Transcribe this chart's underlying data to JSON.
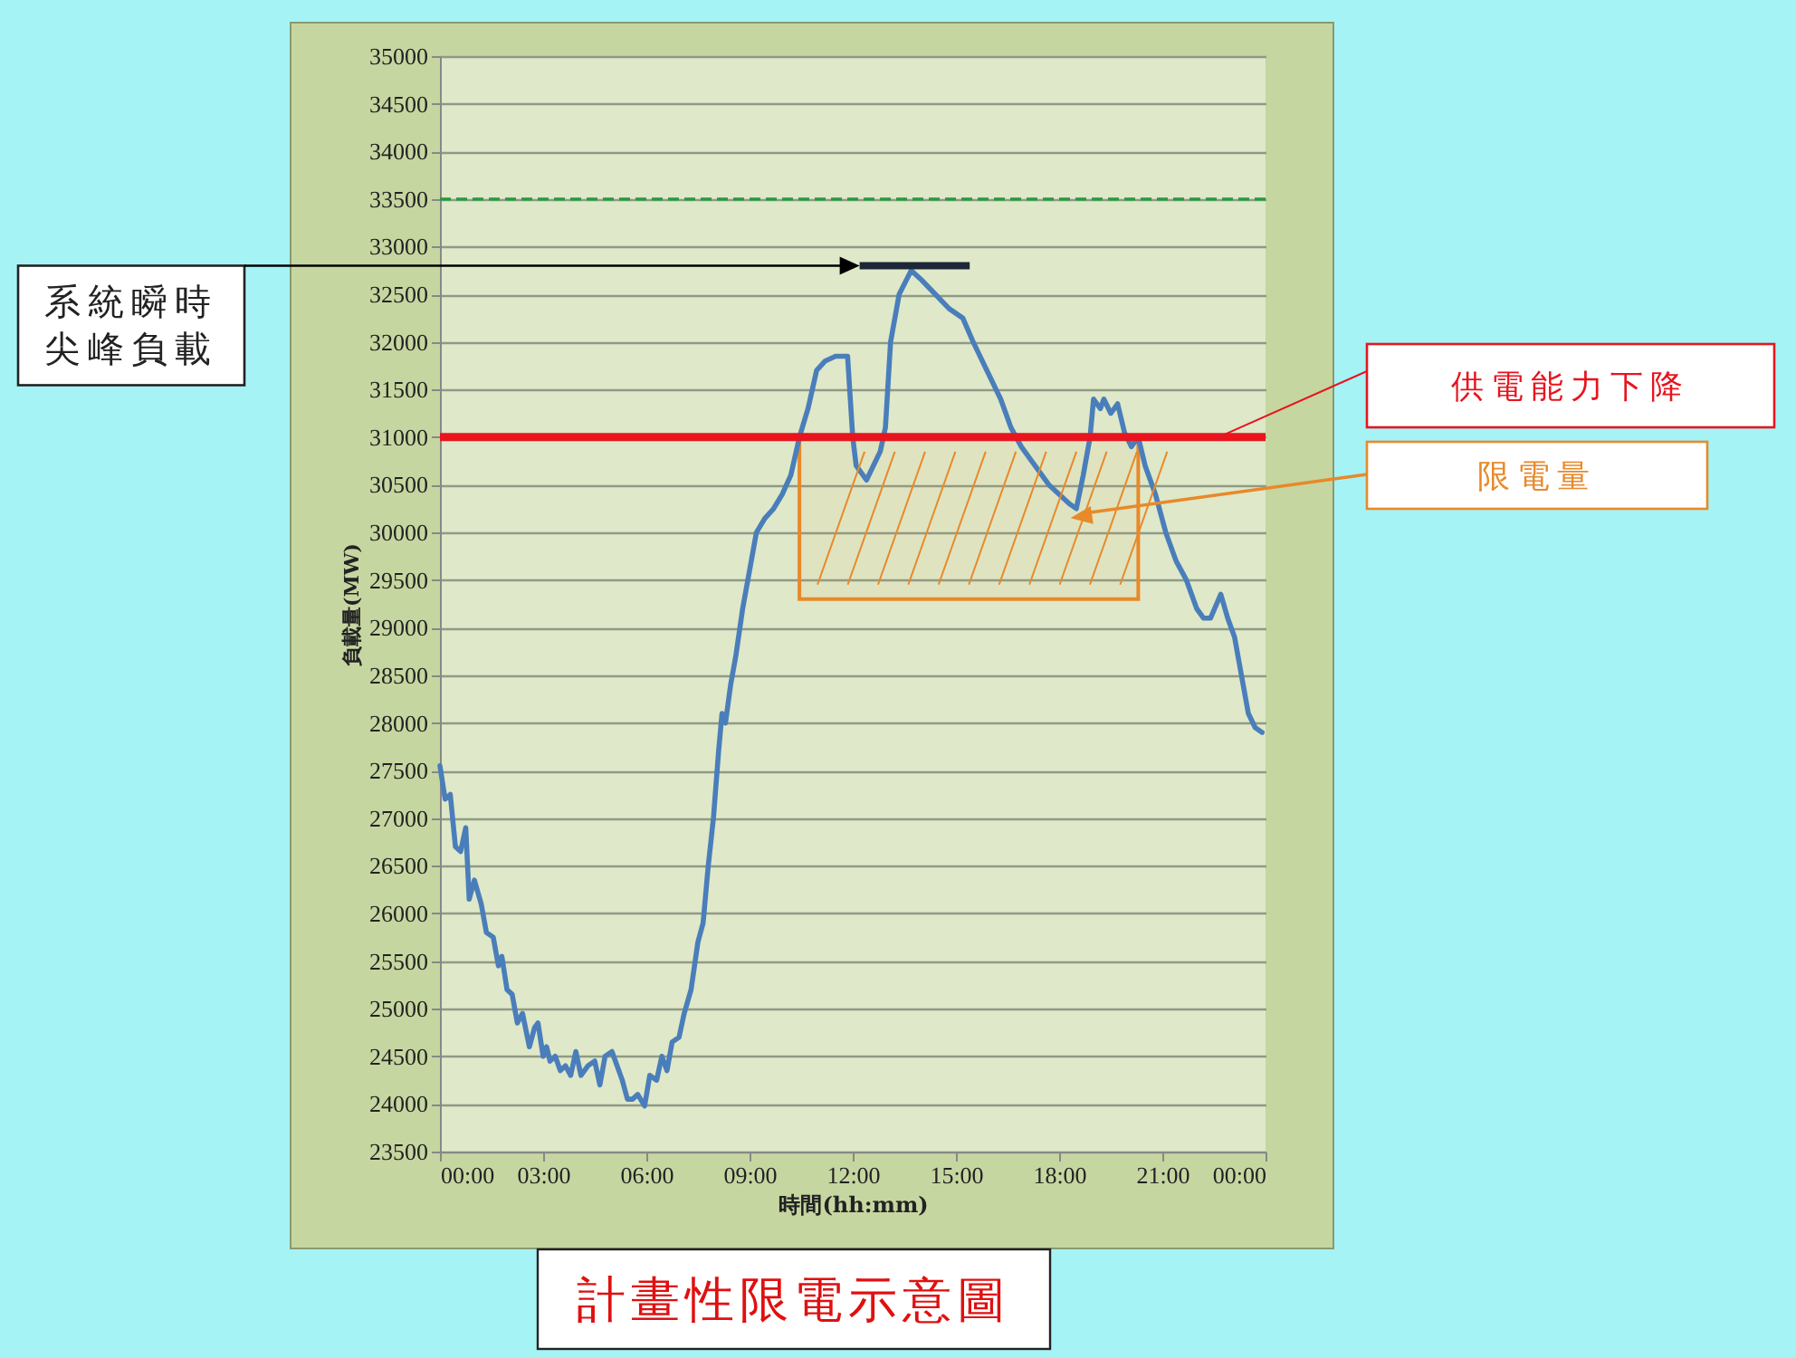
{
  "chart_data": {
    "type": "line",
    "title": "計畫性限電示意圖",
    "xlabel": "時間(hh:mm)",
    "ylabel": "負載量(MW)",
    "xlim": [
      0,
      24
    ],
    "xticks": [
      {
        "value": 0,
        "label": "00:00"
      },
      {
        "value": 3,
        "label": "03:00"
      },
      {
        "value": 6,
        "label": "06:00"
      },
      {
        "value": 9,
        "label": "09:00"
      },
      {
        "value": 12,
        "label": "12:00"
      },
      {
        "value": 15,
        "label": "15:00"
      },
      {
        "value": 18,
        "label": "18:00"
      },
      {
        "value": 21,
        "label": "21:00"
      },
      {
        "value": 24,
        "label": "00:00"
      }
    ],
    "ylim": [
      23500,
      35000
    ],
    "yticks": [
      23500,
      24000,
      24500,
      25000,
      25500,
      26000,
      26500,
      27000,
      27500,
      28000,
      28500,
      29000,
      29500,
      30000,
      30500,
      31000,
      31500,
      32000,
      32500,
      33000,
      33500,
      34000,
      34500,
      35000
    ],
    "grid": "y",
    "x": [
      0,
      0.15,
      0.3,
      0.45,
      0.6,
      0.75,
      0.85,
      1.0,
      1.2,
      1.35,
      1.55,
      1.7,
      1.8,
      1.95,
      2.1,
      2.25,
      2.4,
      2.6,
      2.75,
      2.85,
      3.0,
      3.1,
      3.2,
      3.35,
      3.5,
      3.65,
      3.8,
      3.95,
      4.1,
      4.3,
      4.5,
      4.65,
      4.8,
      5.0,
      5.15,
      5.3,
      5.45,
      5.6,
      5.75,
      5.95,
      6.1,
      6.3,
      6.45,
      6.6,
      6.75,
      6.95,
      7.1,
      7.3,
      7.5,
      7.65,
      7.8,
      7.95,
      8.1,
      8.2,
      8.3,
      8.45,
      8.6,
      8.8,
      9.0,
      9.2,
      9.45,
      9.7,
      9.95,
      10.2,
      10.45,
      10.7,
      10.95,
      11.2,
      11.5,
      11.85,
      12.0,
      12.1,
      12.4,
      12.8,
      12.95,
      13.1,
      13.35,
      13.7,
      14.0,
      14.4,
      14.8,
      15.2,
      15.5,
      15.9,
      16.3,
      16.6,
      16.9,
      17.3,
      17.7,
      18.0,
      18.3,
      18.5,
      18.7,
      18.9,
      19.0,
      19.2,
      19.3,
      19.5,
      19.7,
      19.9,
      20.1,
      20.3,
      20.5,
      20.8,
      21.1,
      21.4,
      21.7,
      22.0,
      22.2,
      22.4,
      22.7,
      22.9,
      23.1,
      23.3,
      23.5,
      23.7,
      23.9
    ],
    "series": [
      {
        "color": "#4a7ebb",
        "values": [
          27550,
          27200,
          27250,
          26700,
          26650,
          26900,
          26150,
          26350,
          26100,
          25800,
          25750,
          25450,
          25550,
          25200,
          25150,
          24850,
          24950,
          24600,
          24800,
          24850,
          24500,
          24600,
          24450,
          24500,
          24350,
          24400,
          24300,
          24550,
          24300,
          24400,
          24450,
          24200,
          24500,
          24550,
          24400,
          24250,
          24050,
          24050,
          24100,
          23980,
          24300,
          24250,
          24500,
          24350,
          24650,
          24700,
          24950,
          25200,
          25700,
          25900,
          26500,
          27000,
          27700,
          28100,
          28000,
          28400,
          28700,
          29200,
          29600,
          30000,
          30150,
          30250,
          30400,
          30600,
          31000,
          31300,
          31700,
          31800,
          31850,
          31850,
          31000,
          30700,
          30550,
          30850,
          31100,
          32000,
          32500,
          32750,
          32650,
          32500,
          32350,
          32250,
          32000,
          31700,
          31400,
          31100,
          30900,
          30700,
          30500,
          30400,
          30300,
          30250,
          30600,
          31000,
          31400,
          31300,
          31400,
          31250,
          31350,
          31050,
          30900,
          31000,
          30700,
          30400,
          30000,
          29700,
          29500,
          29200,
          29100,
          29100,
          29350,
          29100,
          28900,
          28500,
          28100,
          27950,
          27900
        ]
      },
      {
        "type": "line",
        "color": "#1c2838",
        "x": [
          12.2,
          15.4
        ],
        "values": [
          32800,
          32800
        ]
      }
    ],
    "ref_lines": [
      {
        "axis": "y",
        "value": 33500,
        "color": "#1e9e3a",
        "line_style": "dashed"
      },
      {
        "axis": "y",
        "value": 31000,
        "color": "#e8141e",
        "label": "供電能力下降"
      }
    ],
    "bands": [
      {
        "axis": "y",
        "from": 29300,
        "to": 31000,
        "color": "#e8892a",
        "label": "限電量"
      }
    ],
    "annotations": [
      "系統瞬時尖峰負載"
    ]
  }
}
